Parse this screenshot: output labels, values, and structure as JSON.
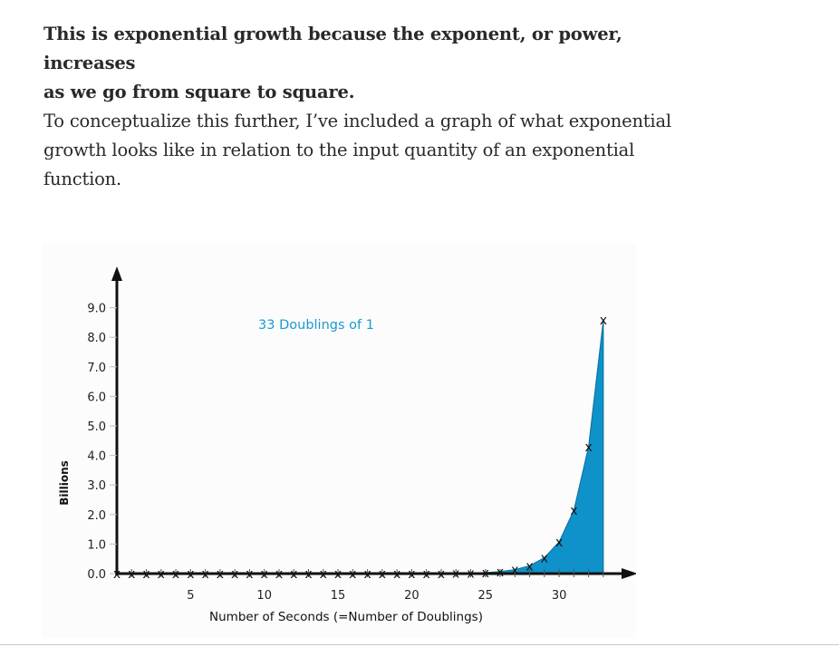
{
  "article": {
    "bold_paragraph_line1": "This is exponential growth because the exponent, or power, increases",
    "bold_paragraph_line2": "as we go from square to square.",
    "body_paragraph_line1": "To conceptualize this further, I’ve included a graph of what exponential",
    "body_paragraph_line2": "growth looks like in relation to the input quantity of an exponential",
    "body_paragraph_line3": "function."
  },
  "chart_data": {
    "type": "area",
    "title": "33 Doublings of 1",
    "xlabel": "Number of Seconds (=Number of Doublings)",
    "ylabel": "Billions",
    "x_ticks": [
      5,
      10,
      15,
      20,
      25,
      30
    ],
    "y_ticks": [
      "0.0",
      "1.0",
      "2.0",
      "3.0",
      "4.0",
      "5.0",
      "6.0",
      "7.0",
      "8.0",
      "9.0"
    ],
    "xlim": [
      0,
      35
    ],
    "ylim": [
      0,
      9.5
    ],
    "x": [
      0,
      1,
      2,
      3,
      4,
      5,
      6,
      7,
      8,
      9,
      10,
      11,
      12,
      13,
      14,
      15,
      16,
      17,
      18,
      19,
      20,
      21,
      22,
      23,
      24,
      25,
      26,
      27,
      28,
      29,
      30,
      31,
      32,
      33
    ],
    "values": [
      0,
      0,
      0,
      0,
      0,
      0,
      0,
      0,
      0,
      0,
      0,
      0,
      0,
      0,
      0,
      0,
      0,
      0,
      0,
      0,
      0.001,
      0.002,
      0.004,
      0.008,
      0.017,
      0.034,
      0.067,
      0.134,
      0.268,
      0.537,
      1.074,
      2.147,
      4.295,
      8.59
    ],
    "marker": "x",
    "fill_color": "#0e92c9",
    "title_color": "#1a9ad0",
    "grid": false,
    "legend": "none"
  }
}
